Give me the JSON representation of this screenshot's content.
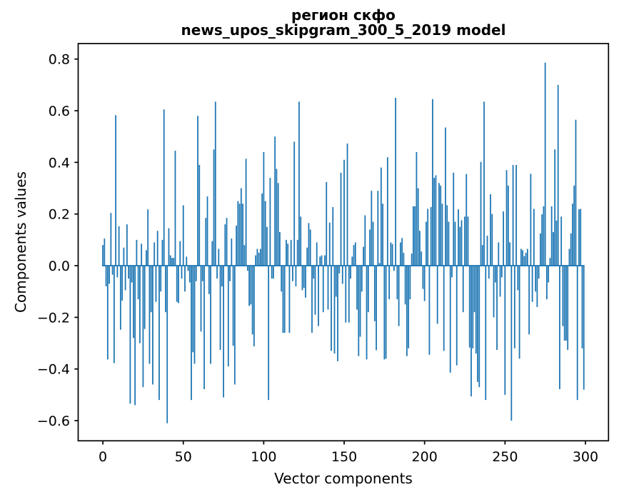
{
  "figure": {
    "background": "#ffffff"
  },
  "chart_data": {
    "type": "bar",
    "title": "регион скфо",
    "subtitle": "news_upos_skipgram_300_5_2019 model",
    "xlabel": "Vector components",
    "ylabel": "Components values",
    "n_components": 300,
    "x_start": 0,
    "bar_color": "#1f77b4",
    "axis_color": "#000000",
    "grid": false,
    "legend": null,
    "xlim": [
      -15.35,
      314.35
    ],
    "ylim": [
      -0.678,
      0.86
    ],
    "bar_width_units": 0.8,
    "x_tick_values": [
      0,
      50,
      100,
      150,
      200,
      250,
      300
    ],
    "x_tick_labels": [
      "0",
      "50",
      "100",
      "150",
      "200",
      "250",
      "300"
    ],
    "y_tick_values": [
      -0.6,
      -0.4,
      -0.2,
      0.0,
      0.2,
      0.4,
      0.6,
      0.8
    ],
    "y_tick_labels": [
      "−0.6",
      "−0.4",
      "−0.2",
      "0.0",
      "0.2",
      "0.4",
      "0.6",
      "0.8"
    ],
    "values": [
      0.08,
      0.105,
      -0.08,
      -0.363,
      -0.07,
      0.204,
      -0.035,
      -0.377,
      0.583,
      -0.045,
      0.153,
      -0.248,
      -0.135,
      0.07,
      -0.095,
      0.16,
      -0.05,
      -0.534,
      -0.065,
      -0.28,
      -0.54,
      0.1,
      -0.13,
      -0.3,
      0.085,
      -0.47,
      -0.245,
      0.06,
      0.218,
      -0.38,
      -0.18,
      -0.46,
      0.09,
      -0.14,
      0.135,
      -0.52,
      -0.1,
      0.1,
      0.605,
      -0.18,
      -0.61,
      0.145,
      0.04,
      0.03,
      0.03,
      0.445,
      -0.14,
      -0.145,
      0.095,
      -0.05,
      0.234,
      -0.1,
      0.035,
      -0.02,
      -0.065,
      -0.52,
      -0.335,
      -0.38,
      -0.06,
      0.58,
      0.39,
      -0.255,
      -0.06,
      -0.478,
      0.185,
      0.268,
      -0.11,
      -0.38,
      0.095,
      0.45,
      0.635,
      -0.05,
      0.065,
      -0.326,
      -0.08,
      -0.51,
      0.16,
      0.185,
      -0.39,
      -0.06,
      0.105,
      -0.31,
      -0.46,
      0.155,
      0.25,
      0.24,
      0.3,
      0.24,
      0.08,
      0.414,
      -0.02,
      -0.156,
      -0.15,
      -0.266,
      -0.312,
      0.04,
      0.065,
      0.05,
      0.065,
      0.28,
      0.44,
      0.25,
      0.15,
      -0.52,
      0.34,
      -0.05,
      -0.05,
      0.5,
      0.375,
      0.32,
      0.13,
      -0.1,
      -0.26,
      -0.26,
      0.1,
      0.085,
      -0.26,
      0.1,
      -0.06,
      0.48,
      -0.08,
      0.1,
      0.635,
      0.19,
      -0.095,
      -0.086,
      -0.124,
      0.07,
      0.165,
      0.14,
      -0.26,
      -0.05,
      -0.19,
      0.09,
      -0.234,
      0.035,
      0.04,
      -0.18,
      0.04,
      0.324,
      -0.17,
      0.167,
      -0.33,
      0.227,
      -0.34,
      -0.12,
      -0.37,
      -0.03,
      0.36,
      -0.07,
      0.41,
      -0.22,
      0.473,
      -0.22,
      -0.05,
      0.035,
      0.08,
      0.09,
      -0.17,
      -0.35,
      -0.275,
      -0.1,
      0.073,
      0.195,
      -0.363,
      -0.18,
      0.14,
      0.29,
      0.17,
      -0.215,
      -0.327,
      0.29,
      0.01,
      0.38,
      0.24,
      -0.363,
      -0.36,
      0.42,
      -0.13,
      0.09,
      0.084,
      -0.02,
      0.65,
      -0.13,
      -0.234,
      0.09,
      0.107,
      0.05,
      -0.15,
      -0.35,
      -0.32,
      -0.13,
      0.047,
      0.23,
      0.23,
      0.44,
      0.3,
      0.135,
      0.055,
      -0.09,
      -0.137,
      0.17,
      0.22,
      -0.345,
      0.227,
      0.645,
      0.34,
      0.35,
      -0.225,
      0.32,
      0.31,
      0.24,
      -0.33,
      0.535,
      0.234,
      0.17,
      -0.414,
      -0.045,
      0.36,
      0.17,
      -0.386,
      0.218,
      0.15,
      0.176,
      -0.18,
      0.19,
      0.355,
      0.19,
      -0.317,
      -0.506,
      -0.32,
      -0.18,
      -0.34,
      -0.45,
      -0.47,
      0.402,
      0.08,
      0.635,
      -0.52,
      0.116,
      -0.05,
      0.277,
      0.2,
      -0.2,
      -0.065,
      -0.326,
      0.09,
      -0.12,
      -0.045,
      0.21,
      -0.5,
      0.37,
      0.31,
      0.09,
      -0.6,
      0.39,
      -0.32,
      0.39,
      -0.095,
      -0.36,
      0.065,
      0.06,
      0.037,
      0.05,
      0.065,
      -0.266,
      0.356,
      -0.14,
      0.22,
      -0.1,
      -0.16,
      -0.05,
      0.125,
      0.199,
      0.23,
      0.786,
      -0.13,
      -0.065,
      0.03,
      0.23,
      0.13,
      0.45,
      0.175,
      0.7,
      -0.478,
      0.19,
      -0.234,
      -0.29,
      -0.29,
      -0.326,
      0.065,
      0.125,
      0.24,
      0.31,
      0.565,
      -0.52,
      0.218,
      0.22,
      -0.32,
      -0.48
    ]
  }
}
